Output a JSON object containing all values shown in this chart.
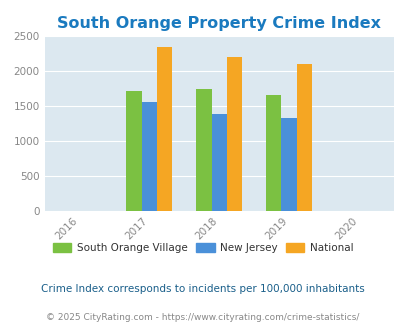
{
  "title": "South Orange Property Crime Index",
  "title_color": "#1a7abf",
  "years": [
    2016,
    2017,
    2018,
    2019,
    2020
  ],
  "bar_years": [
    2017,
    2018,
    2019
  ],
  "south_orange": [
    1720,
    1740,
    1660
  ],
  "new_jersey": [
    1555,
    1390,
    1330
  ],
  "national": [
    2350,
    2210,
    2100
  ],
  "color_south_orange": "#7bc142",
  "color_new_jersey": "#4a90d9",
  "color_national": "#f5a623",
  "ylim": [
    0,
    2500
  ],
  "yticks": [
    0,
    500,
    1000,
    1500,
    2000,
    2500
  ],
  "bg_color": "#dce8f0",
  "fig_bg_color": "#ffffff",
  "legend_labels": [
    "South Orange Village",
    "New Jersey",
    "National"
  ],
  "legend_text_color": "#333333",
  "footnote1": "Crime Index corresponds to incidents per 100,000 inhabitants",
  "footnote2": "© 2025 CityRating.com - https://www.cityrating.com/crime-statistics/",
  "bar_width": 0.22
}
